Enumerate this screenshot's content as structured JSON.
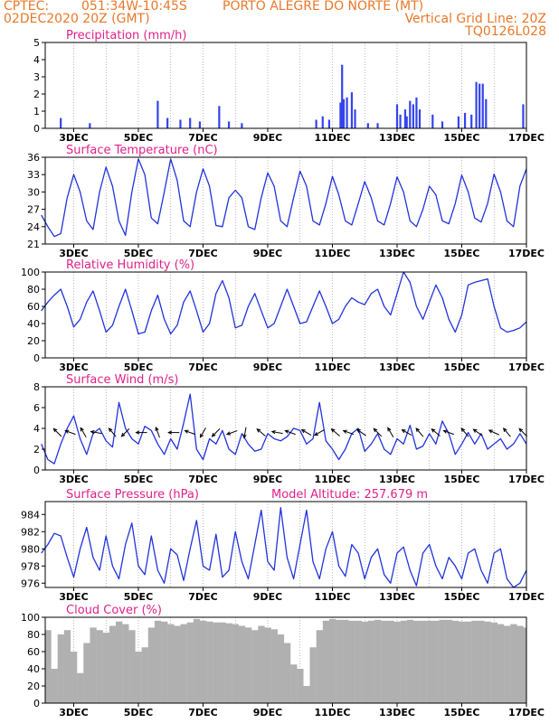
{
  "header": {
    "line1_left": "CPTEC:",
    "line1_coords": "051:34W-10:45S",
    "line1_place": "PORTO ALEGRE DO NORTE (MT)",
    "line2_left": "02DEC2020 20Z (GMT)",
    "line2_right": "Vertical Grid Line: 20Z",
    "line3_right": "TQ0126L028"
  },
  "colors": {
    "header": "#e8782a",
    "title": "#e0208a",
    "series": "#2233dd",
    "bars": "#3344ee",
    "cloud": "#b0b0b0",
    "arrows": "#000000"
  },
  "x_tick_labels": [
    "3DEC",
    "5DEC",
    "7DEC",
    "9DEC",
    "11DEC",
    "13DEC",
    "15DEC",
    "17DEC"
  ],
  "model_altitude_label": "Model Altitude: 257.679 m",
  "chart_data": [
    {
      "type": "bar",
      "title": "Precipitation (mm/h)",
      "ylim": [
        0,
        5
      ],
      "yticks": [
        "0",
        "1",
        "2",
        "3",
        "4",
        "5"
      ],
      "x": [
        2.6,
        3.5,
        5.6,
        5.9,
        6.3,
        6.6,
        6.9,
        7.5,
        7.8,
        8.2,
        10.5,
        10.7,
        10.9,
        11.25,
        11.3,
        11.35,
        11.45,
        11.6,
        11.7,
        12.1,
        12.4,
        13.0,
        13.1,
        13.25,
        13.3,
        13.4,
        13.5,
        13.6,
        13.7,
        14.1,
        14.4,
        14.9,
        15.1,
        15.3,
        15.45,
        15.55,
        15.65,
        15.75,
        16.9
      ],
      "values": [
        0.6,
        0.3,
        1.6,
        0.6,
        0.5,
        0.6,
        0.4,
        1.3,
        0.4,
        0.3,
        0.5,
        0.7,
        0.5,
        1.5,
        3.7,
        1.7,
        1.8,
        2.1,
        1.1,
        0.3,
        0.3,
        1.4,
        0.8,
        1.1,
        0.7,
        1.6,
        1.4,
        1.8,
        1.1,
        0.8,
        0.4,
        0.7,
        0.9,
        0.8,
        2.7,
        2.6,
        2.6,
        1.7,
        1.4
      ],
      "grid": true
    },
    {
      "type": "line",
      "title": "Surface Temperature (nC)",
      "ylim": [
        21,
        36
      ],
      "yticks": [
        "21",
        "24",
        "27",
        "30",
        "33",
        "36"
      ],
      "x": [
        2,
        2.2,
        2.4,
        2.6,
        2.8,
        3.0,
        3.2,
        3.4,
        3.6,
        3.8,
        4.0,
        4.2,
        4.4,
        4.6,
        4.8,
        5.0,
        5.2,
        5.4,
        5.6,
        5.8,
        6.0,
        6.2,
        6.4,
        6.6,
        6.8,
        7.0,
        7.2,
        7.4,
        7.6,
        7.8,
        8.0,
        8.2,
        8.4,
        8.6,
        8.8,
        9.0,
        9.2,
        9.4,
        9.6,
        9.8,
        10.0,
        10.2,
        10.4,
        10.6,
        10.8,
        11.0,
        11.2,
        11.4,
        11.6,
        11.8,
        12.0,
        12.2,
        12.4,
        12.6,
        12.8,
        13.0,
        13.2,
        13.4,
        13.6,
        13.8,
        14.0,
        14.2,
        14.4,
        14.6,
        14.8,
        15.0,
        15.2,
        15.4,
        15.6,
        15.8,
        16.0,
        16.2,
        16.4,
        16.6,
        16.8,
        17.0
      ],
      "values": [
        26,
        24,
        22.3,
        22.8,
        29,
        33,
        30,
        25,
        23.5,
        30,
        34.3,
        31,
        25,
        22.5,
        30,
        35.7,
        33,
        25.5,
        24.5,
        30,
        35.7,
        32,
        25,
        24,
        30,
        34,
        31,
        24.2,
        24,
        29,
        30.3,
        29,
        24,
        23.5,
        29,
        33.3,
        31,
        25,
        24,
        29,
        33.6,
        31,
        25,
        24.3,
        28,
        32.7,
        29.5,
        25,
        24.3,
        28,
        31.8,
        29,
        25,
        24.3,
        28,
        32.6,
        30,
        25,
        24,
        27,
        31,
        29.5,
        25,
        24.5,
        28,
        32.9,
        30,
        25.5,
        24.8,
        28,
        33.1,
        30,
        25,
        24,
        31,
        34
      ],
      "grid": true
    },
    {
      "type": "line",
      "title": "Relative Humidity (%)",
      "ylim": [
        0,
        100
      ],
      "yticks": [
        "0",
        "20",
        "40",
        "60",
        "80",
        "100"
      ],
      "x": [
        2,
        2.2,
        2.4,
        2.6,
        2.8,
        3.0,
        3.2,
        3.4,
        3.6,
        3.8,
        4.0,
        4.2,
        4.4,
        4.6,
        4.8,
        5.0,
        5.2,
        5.4,
        5.6,
        5.8,
        6.0,
        6.2,
        6.4,
        6.6,
        6.8,
        7.0,
        7.2,
        7.4,
        7.6,
        7.8,
        8.0,
        8.2,
        8.4,
        8.6,
        8.8,
        9.0,
        9.2,
        9.4,
        9.6,
        9.8,
        10.0,
        10.2,
        10.4,
        10.6,
        10.8,
        11.0,
        11.2,
        11.4,
        11.6,
        11.8,
        12.0,
        12.2,
        12.4,
        12.6,
        12.8,
        13.0,
        13.2,
        13.4,
        13.6,
        13.8,
        14.0,
        14.2,
        14.4,
        14.6,
        14.8,
        15.0,
        15.2,
        15.4,
        15.6,
        15.8,
        16.0,
        16.2,
        16.4,
        16.6,
        16.8,
        17.0
      ],
      "values": [
        55,
        65,
        73,
        80,
        60,
        36,
        45,
        65,
        78,
        55,
        30,
        38,
        60,
        80,
        55,
        28,
        30,
        55,
        73,
        45,
        28,
        38,
        65,
        78,
        55,
        30,
        40,
        75,
        90,
        70,
        35,
        38,
        60,
        75,
        55,
        35,
        40,
        60,
        80,
        60,
        40,
        42,
        60,
        78,
        60,
        40,
        45,
        60,
        70,
        65,
        62,
        75,
        80,
        60,
        50,
        75,
        100,
        88,
        60,
        45,
        65,
        85,
        70,
        45,
        30,
        50,
        85,
        88,
        90,
        92,
        60,
        35,
        30,
        32,
        35,
        42
      ],
      "grid": true
    },
    {
      "type": "line",
      "title": "Surface Wind (m/s)",
      "ylim": [
        0,
        8
      ],
      "yticks": [
        "0",
        "2",
        "4",
        "6",
        "8"
      ],
      "x": [
        2,
        2.2,
        2.4,
        2.6,
        2.8,
        3.0,
        3.2,
        3.4,
        3.6,
        3.8,
        4.0,
        4.2,
        4.4,
        4.6,
        4.8,
        5.0,
        5.2,
        5.4,
        5.6,
        5.8,
        6.0,
        6.2,
        6.4,
        6.6,
        6.8,
        7.0,
        7.2,
        7.4,
        7.6,
        7.8,
        8.0,
        8.2,
        8.4,
        8.6,
        8.8,
        9.0,
        9.2,
        9.4,
        9.6,
        9.8,
        10.0,
        10.2,
        10.4,
        10.6,
        10.8,
        11.0,
        11.2,
        11.4,
        11.6,
        11.8,
        12.0,
        12.2,
        12.4,
        12.6,
        12.8,
        13.0,
        13.2,
        13.4,
        13.6,
        13.8,
        14.0,
        14.2,
        14.4,
        14.6,
        14.8,
        15.0,
        15.2,
        15.4,
        15.6,
        15.8,
        16.0,
        16.2,
        16.4,
        16.6,
        16.8,
        17.0
      ],
      "values": [
        2.5,
        1,
        0.6,
        2.5,
        4,
        5.2,
        3,
        1.5,
        3.5,
        4,
        2.8,
        2.2,
        6.5,
        4,
        3,
        2.5,
        4.2,
        3.8,
        2.5,
        1.5,
        3,
        2,
        4.5,
        7.3,
        2,
        1,
        3,
        2.5,
        3.8,
        2,
        1.5,
        3.5,
        2.5,
        1.8,
        2,
        3.5,
        3,
        2.8,
        3.2,
        4,
        3.8,
        2.5,
        3,
        6.5,
        2.8,
        2,
        1,
        2,
        3.5,
        4,
        1.8,
        2.5,
        3.5,
        2,
        1.5,
        3,
        2.5,
        4.3,
        2,
        2.3,
        3.5,
        2.5,
        4.7,
        3.5,
        1.5,
        2.5,
        3.6,
        2.5,
        3.5,
        2,
        2.5,
        3,
        2,
        2.5,
        3.5,
        2.5
      ],
      "wind_arrow_x": [
        2.5,
        2.9,
        3.3,
        3.7,
        4.2,
        4.6,
        5.1,
        5.6,
        6.1,
        6.6,
        7.0,
        7.4,
        7.9,
        8.3,
        8.8,
        9.3,
        9.7,
        10.2,
        10.6,
        11.1,
        11.5,
        11.9,
        12.4,
        12.8,
        13.3,
        13.7,
        14.2,
        14.6,
        15.1,
        15.5,
        16.0,
        16.4,
        16.9
      ],
      "wind_arrow_deg": [
        225,
        200,
        240,
        190,
        230,
        135,
        180,
        250,
        180,
        200,
        120,
        135,
        160,
        100,
        220,
        190,
        200,
        210,
        150,
        220,
        200,
        215,
        225,
        240,
        210,
        230,
        220,
        200,
        230,
        215,
        205,
        230,
        225
      ],
      "grid": true
    },
    {
      "type": "line",
      "title": "Surface Pressure (hPa)",
      "ylim": [
        975.5,
        985.5
      ],
      "yticks": [
        "976",
        "978",
        "980",
        "982",
        "984"
      ],
      "x": [
        2,
        2.2,
        2.4,
        2.6,
        2.8,
        3.0,
        3.2,
        3.4,
        3.6,
        3.8,
        4.0,
        4.2,
        4.4,
        4.6,
        4.8,
        5.0,
        5.2,
        5.4,
        5.6,
        5.8,
        6.0,
        6.2,
        6.4,
        6.6,
        6.8,
        7.0,
        7.2,
        7.4,
        7.6,
        7.8,
        8.0,
        8.2,
        8.4,
        8.6,
        8.8,
        9.0,
        9.2,
        9.4,
        9.6,
        9.8,
        10.0,
        10.2,
        10.4,
        10.6,
        10.8,
        11.0,
        11.2,
        11.4,
        11.6,
        11.8,
        12.0,
        12.2,
        12.4,
        12.6,
        12.8,
        13.0,
        13.2,
        13.4,
        13.6,
        13.8,
        14.0,
        14.2,
        14.4,
        14.6,
        14.8,
        15.0,
        15.2,
        15.4,
        15.6,
        15.8,
        16.0,
        16.2,
        16.4,
        16.6,
        16.8,
        17.0
      ],
      "values": [
        979.5,
        980.5,
        981.8,
        981.5,
        979,
        976.7,
        980,
        982.5,
        979,
        977.5,
        981.5,
        978,
        976.5,
        980.5,
        983,
        978,
        977,
        981.5,
        977.5,
        976,
        980,
        979.3,
        976.3,
        980,
        983.3,
        978,
        977.5,
        981.7,
        976.7,
        977.5,
        982,
        978.5,
        976.5,
        980.5,
        984.5,
        978.5,
        977.5,
        984.8,
        979,
        976.5,
        980.5,
        984.5,
        978.5,
        976.5,
        980,
        982,
        978,
        976.8,
        980.5,
        979.5,
        976.5,
        979,
        980,
        977,
        976,
        979.5,
        980.2,
        977.5,
        975.7,
        979.5,
        980.5,
        978,
        976.5,
        979,
        978,
        976.5,
        979.5,
        980,
        977.5,
        976,
        979.5,
        980,
        976.5,
        975.5,
        976,
        977.5
      ],
      "grid": true
    },
    {
      "type": "bar",
      "title": "Cloud Cover (%)",
      "ylim": [
        0,
        100
      ],
      "yticks": [
        "0",
        "20",
        "40",
        "60",
        "80",
        "100"
      ],
      "x": [
        2,
        2.2,
        2.4,
        2.6,
        2.8,
        3.0,
        3.2,
        3.4,
        3.6,
        3.8,
        4.0,
        4.2,
        4.4,
        4.6,
        4.8,
        5.0,
        5.2,
        5.4,
        5.6,
        5.8,
        6.0,
        6.2,
        6.4,
        6.6,
        6.8,
        7.0,
        7.2,
        7.4,
        7.6,
        7.8,
        8.0,
        8.2,
        8.4,
        8.6,
        8.8,
        9.0,
        9.2,
        9.4,
        9.6,
        9.8,
        10.0,
        10.2,
        10.4,
        10.6,
        10.8,
        11.0,
        11.2,
        11.4,
        11.6,
        11.8,
        12.0,
        12.2,
        12.4,
        12.6,
        12.8,
        13.0,
        13.2,
        13.4,
        13.6,
        13.8,
        14.0,
        14.2,
        14.4,
        14.6,
        14.8,
        15.0,
        15.2,
        15.4,
        15.6,
        15.8,
        16.0,
        16.2,
        16.4,
        16.6,
        16.8,
        17.0
      ],
      "values": [
        88,
        85,
        40,
        80,
        85,
        60,
        35,
        70,
        88,
        85,
        82,
        90,
        95,
        92,
        85,
        60,
        65,
        88,
        96,
        95,
        92,
        90,
        92,
        94,
        98,
        96,
        95,
        94,
        94,
        93,
        92,
        90,
        88,
        85,
        90,
        88,
        86,
        80,
        70,
        45,
        40,
        20,
        65,
        85,
        96,
        98,
        97,
        97,
        96,
        96,
        95,
        96,
        97,
        96,
        96,
        95,
        96,
        97,
        96,
        96,
        96,
        96,
        97,
        97,
        96,
        95,
        95,
        96,
        96,
        95,
        94,
        92,
        90,
        92,
        90,
        88
      ],
      "grid": true
    }
  ]
}
